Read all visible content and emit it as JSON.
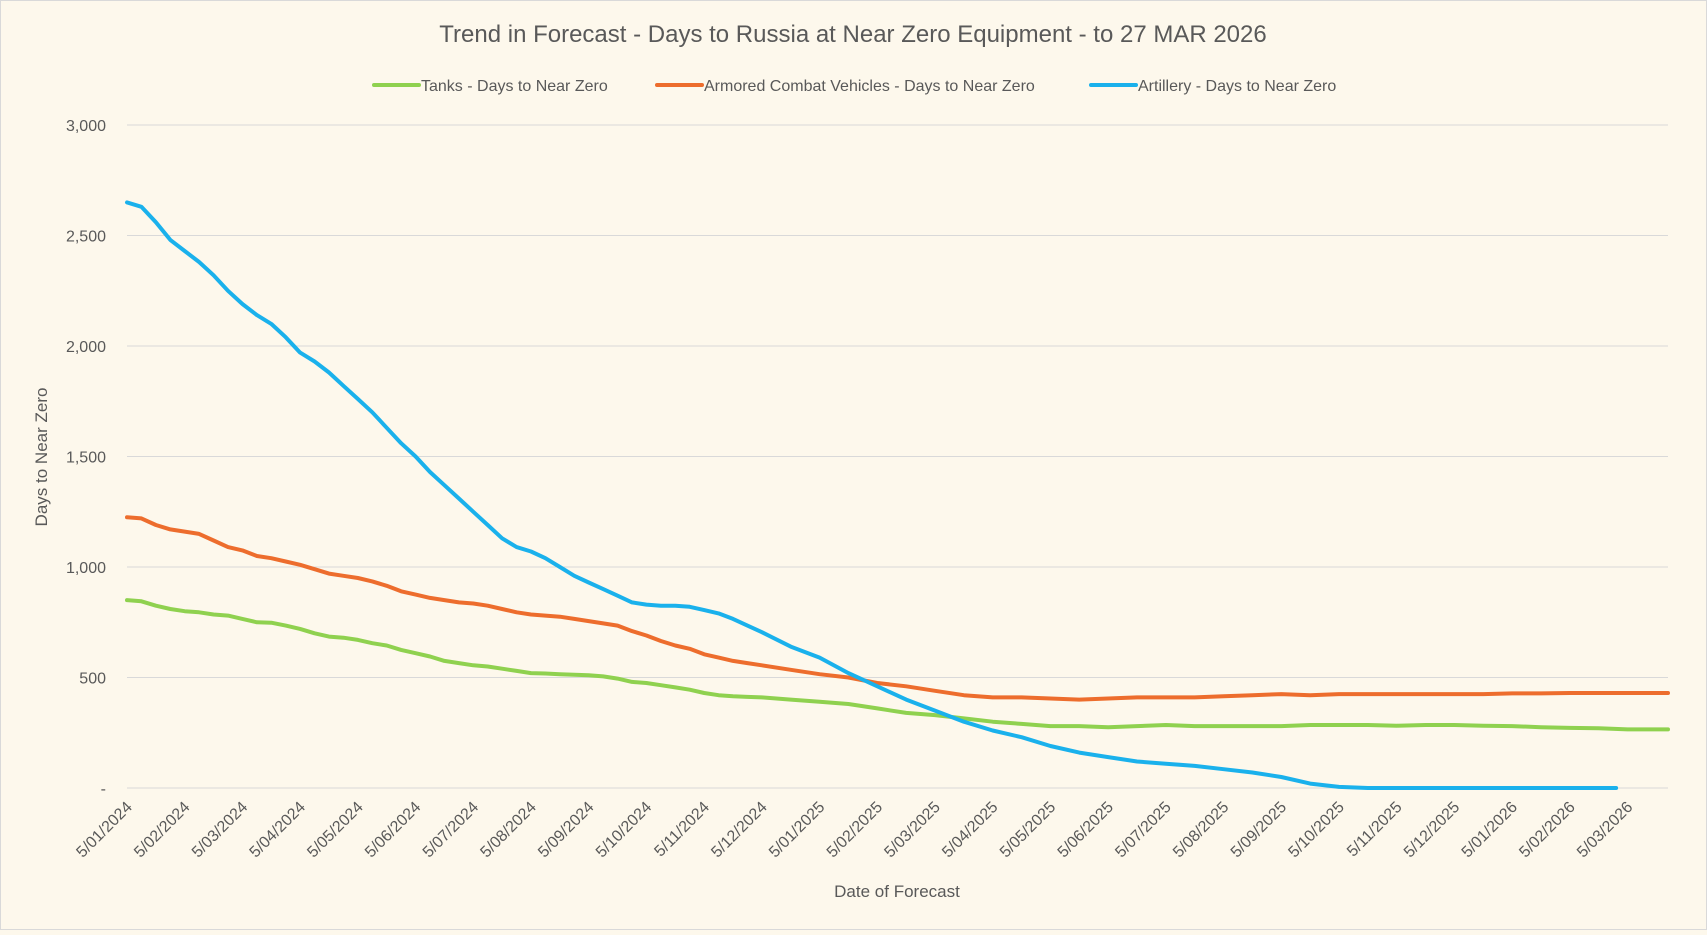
{
  "chart_data": {
    "type": "line",
    "title": "Trend in Forecast - Days to Russia at Near Zero Equipment - to 27 MAR 2026",
    "xlabel": "Date of Forecast",
    "ylabel": "Days to Near Zero",
    "ylim": [
      0,
      3000
    ],
    "y_ticks": [
      0,
      500,
      1000,
      1500,
      2000,
      2500,
      3000
    ],
    "y_tick_labels": [
      "-",
      "500",
      "1,000",
      "1,500",
      "2,000",
      "2,500",
      "3,000"
    ],
    "x_tick_labels": [
      "5/01/2024",
      "5/02/2024",
      "5/03/2024",
      "5/04/2024",
      "5/05/2024",
      "5/06/2024",
      "5/07/2024",
      "5/08/2024",
      "5/09/2024",
      "5/10/2024",
      "5/11/2024",
      "5/12/2024",
      "5/01/2025",
      "5/02/2025",
      "5/03/2025",
      "5/04/2025",
      "5/05/2025",
      "5/06/2025",
      "5/07/2025",
      "5/08/2025",
      "5/09/2025",
      "5/10/2025",
      "5/11/2025",
      "5/12/2025",
      "5/01/2026",
      "5/02/2026",
      "5/03/2026"
    ],
    "x_range_months": [
      0,
      26.7
    ],
    "legend_position": "top",
    "grid": true,
    "series": [
      {
        "name": "Tanks - Days to Near Zero",
        "color": "#8fd14f",
        "x": [
          0,
          0.25,
          0.5,
          0.75,
          1,
          1.25,
          1.5,
          1.75,
          2,
          2.25,
          2.5,
          2.75,
          3,
          3.25,
          3.5,
          3.75,
          4,
          4.25,
          4.5,
          4.75,
          5,
          5.25,
          5.5,
          5.75,
          6,
          6.25,
          6.5,
          6.75,
          7,
          7.25,
          7.5,
          7.75,
          8,
          8.25,
          8.5,
          8.75,
          9,
          9.25,
          9.5,
          9.75,
          10,
          10.25,
          10.5,
          10.75,
          11,
          11.5,
          12,
          12.5,
          13,
          13.5,
          14,
          14.5,
          15,
          15.5,
          16,
          16.5,
          17,
          17.5,
          18,
          18.5,
          19,
          19.5,
          20,
          20.5,
          21,
          21.5,
          22,
          22.5,
          23,
          23.5,
          24,
          24.5,
          25,
          25.5,
          26,
          26.7
        ],
        "values": [
          850,
          845,
          825,
          810,
          800,
          795,
          785,
          780,
          765,
          750,
          748,
          735,
          720,
          700,
          685,
          680,
          670,
          655,
          645,
          625,
          610,
          595,
          575,
          565,
          555,
          550,
          540,
          530,
          520,
          518,
          515,
          512,
          510,
          505,
          495,
          480,
          475,
          465,
          455,
          445,
          430,
          420,
          415,
          412,
          410,
          400,
          390,
          380,
          360,
          340,
          330,
          315,
          300,
          290,
          280,
          280,
          275,
          280,
          285,
          280,
          280,
          280,
          280,
          285,
          285,
          285,
          282,
          285,
          285,
          282,
          280,
          275,
          272,
          270,
          265,
          265
        ]
      },
      {
        "name": "Armored Combat Vehicles - Days to Near Zero",
        "color": "#ed6d2d",
        "x": [
          0,
          0.25,
          0.5,
          0.75,
          1,
          1.25,
          1.5,
          1.75,
          2,
          2.25,
          2.5,
          2.75,
          3,
          3.25,
          3.5,
          3.75,
          4,
          4.25,
          4.5,
          4.75,
          5,
          5.25,
          5.5,
          5.75,
          6,
          6.25,
          6.5,
          6.75,
          7,
          7.25,
          7.5,
          7.75,
          8,
          8.25,
          8.5,
          8.75,
          9,
          9.25,
          9.5,
          9.75,
          10,
          10.25,
          10.5,
          10.75,
          11,
          11.5,
          12,
          12.5,
          13,
          13.5,
          14,
          14.5,
          15,
          15.5,
          16,
          16.5,
          17,
          17.5,
          18,
          18.5,
          19,
          19.5,
          20,
          20.5,
          21,
          21.5,
          22,
          22.5,
          23,
          23.5,
          24,
          24.5,
          25,
          25.5,
          26,
          26.7
        ],
        "values": [
          1225,
          1220,
          1190,
          1170,
          1160,
          1150,
          1120,
          1090,
          1075,
          1050,
          1040,
          1025,
          1010,
          990,
          970,
          960,
          950,
          935,
          915,
          890,
          875,
          860,
          850,
          840,
          835,
          825,
          810,
          795,
          785,
          780,
          775,
          765,
          755,
          745,
          735,
          710,
          690,
          665,
          645,
          630,
          605,
          590,
          575,
          565,
          555,
          535,
          515,
          500,
          475,
          460,
          440,
          420,
          410,
          410,
          405,
          400,
          405,
          410,
          410,
          410,
          415,
          420,
          425,
          420,
          425,
          425,
          425,
          425,
          425,
          425,
          428,
          428,
          430,
          430,
          430,
          430
        ]
      },
      {
        "name": "Artillery - Days to Near Zero",
        "color": "#1ab1ec",
        "x": [
          0,
          0.25,
          0.5,
          0.75,
          1,
          1.25,
          1.5,
          1.75,
          2,
          2.25,
          2.5,
          2.75,
          3,
          3.25,
          3.5,
          3.75,
          4,
          4.25,
          4.5,
          4.75,
          5,
          5.25,
          5.5,
          5.75,
          6,
          6.25,
          6.5,
          6.75,
          7,
          7.25,
          7.5,
          7.75,
          8,
          8.25,
          8.5,
          8.75,
          9,
          9.25,
          9.5,
          9.75,
          10,
          10.25,
          10.5,
          10.75,
          11,
          11.5,
          12,
          12.5,
          13,
          13.5,
          14,
          14.5,
          15,
          15.5,
          16,
          16.5,
          17,
          17.5,
          18,
          18.5,
          19,
          19.5,
          20,
          20.5,
          21,
          21.5,
          22,
          22.5,
          23,
          23.5,
          24,
          24.5,
          25,
          25.25,
          25.5,
          25.8
        ],
        "values": [
          2650,
          2630,
          2560,
          2480,
          2430,
          2380,
          2320,
          2250,
          2190,
          2140,
          2100,
          2040,
          1970,
          1930,
          1880,
          1820,
          1760,
          1700,
          1630,
          1560,
          1500,
          1430,
          1370,
          1310,
          1250,
          1190,
          1130,
          1090,
          1070,
          1040,
          1000,
          960,
          930,
          900,
          870,
          840,
          830,
          825,
          825,
          820,
          805,
          790,
          765,
          735,
          705,
          640,
          590,
          520,
          460,
          400,
          350,
          300,
          260,
          230,
          190,
          160,
          140,
          120,
          110,
          100,
          85,
          70,
          50,
          20,
          5,
          0,
          0,
          0,
          0,
          0,
          0,
          0,
          0,
          0,
          0,
          0
        ]
      }
    ]
  }
}
